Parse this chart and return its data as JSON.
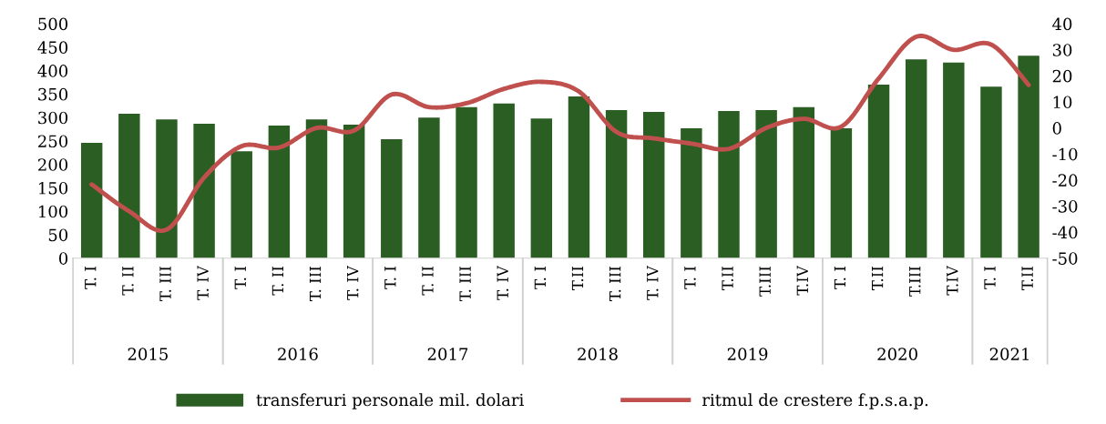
{
  "chart_data": {
    "type": "bar",
    "categories": [
      "T. I",
      "T. II",
      "T. III",
      "T. IV",
      "T. I",
      "T. II",
      "T. III",
      "T. IV",
      "T. I",
      "T. II",
      "T. III",
      "T. IV",
      "T. I",
      "T.II",
      "T. III",
      "T. IV",
      "T. I",
      "T.II",
      "T.III",
      "T.IV",
      "T. I",
      "T.II",
      "T.III",
      "T.IV",
      "T. I",
      "T.II"
    ],
    "series": [
      {
        "name": "transferuri personale mil. dolari",
        "color": "#2a5e23",
        "values": [
          246,
          308,
          296,
          287,
          228,
          283,
          296,
          285,
          254,
          300,
          322,
          330,
          298,
          345,
          316,
          312,
          277,
          314,
          316,
          322,
          277,
          370,
          424,
          417,
          366,
          432
        ]
      },
      {
        "name": "ritmul de crestere f.p.s.a.p.",
        "type": "line",
        "axis": "y2",
        "color": "#c0504d",
        "values": [
          -21.7,
          -32,
          -39,
          -19,
          -7,
          -7.5,
          0,
          -1,
          12.8,
          8,
          9.5,
          15,
          17.7,
          14,
          -1.5,
          -4,
          -6,
          -8,
          0,
          3.5,
          0.5,
          19,
          35,
          30,
          32,
          16.5
        ]
      }
    ],
    "ylim": [
      0,
      500
    ],
    "yticks": [
      0,
      50,
      100,
      150,
      200,
      250,
      300,
      350,
      400,
      450,
      500
    ],
    "y2lim": [
      -50,
      40
    ],
    "y2ticks": [
      -50,
      -40,
      -30,
      -20,
      -10,
      0,
      10,
      20,
      30,
      40
    ],
    "annotations": [
      "2015",
      "2016",
      "2017",
      "2018",
      "2019",
      "2020",
      "2021"
    ],
    "grid": false,
    "legend": "bottom"
  }
}
